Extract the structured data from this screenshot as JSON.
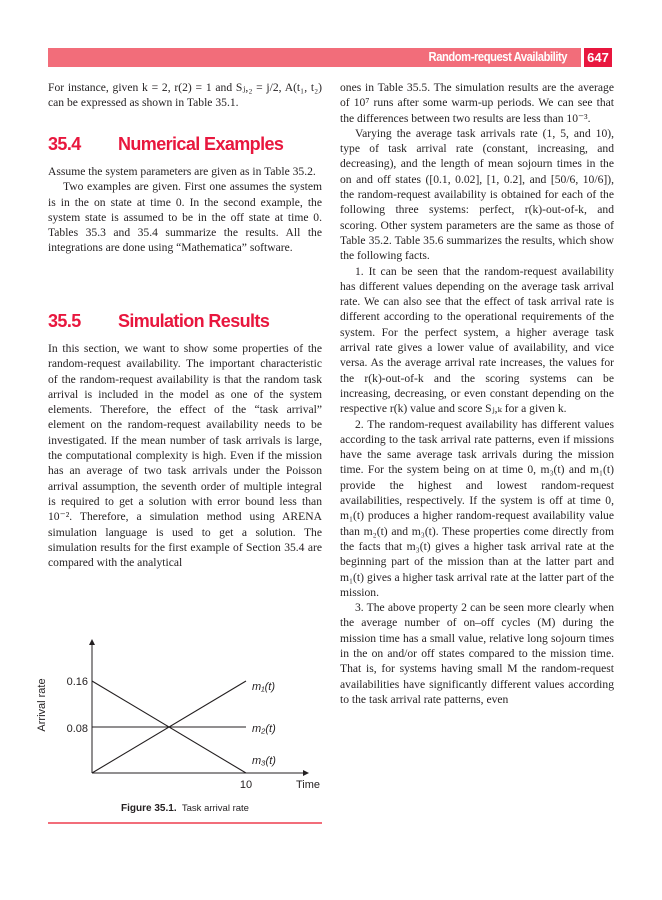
{
  "header": {
    "running_title": "Random-request Availability",
    "page_number": "647",
    "bar_color": "#f26d7a",
    "accent": "#e8173e"
  },
  "left": {
    "p1": "For instance, given k = 2, r(2) = 1 and Sⱼ,₂ = j/2, A(t₁, t₂) can be expressed as shown in Table 35.1.",
    "sec4": {
      "num": "35.4",
      "title": "Numerical Examples"
    },
    "p2": "Assume the system parameters are given as in Table 35.2.",
    "p3": "Two examples are given. First one assumes the system is in the on state at time 0. In the second example, the system state is assumed to be in the off state at time 0. Tables 35.3 and 35.4 summarize the results. All the integrations are done using “Mathematica” software.",
    "sec5": {
      "num": "35.5",
      "title": "Simulation Results"
    },
    "p4": "In this section, we want to show some properties of the random-request availability. The important characteristic of the random-request availability is that the random task arrival is included in the model as one of the system elements. Therefore, the effect of the “task arrival” element on the random-request availability needs to be investigated. If the mean number of task arrivals is large, the computational complexity is high. Even if the mission has an average of two task arrivals under the Poisson arrival assumption, the seventh order of multiple integral is required to get a solution with error bound less than 10⁻². Therefore, a simulation method using ARENA simulation language is used to get a solution. The simulation results for the first example of Section 35.4 are compared with the analytical"
  },
  "figure": {
    "label": "Figure 35.1.",
    "caption": "Task arrival rate"
  },
  "chart_data": {
    "type": "line",
    "xlabel": "Time",
    "ylabel": "Arrival rate",
    "x_ticks": [
      "10"
    ],
    "y_ticks": [
      "0.16",
      "0.08"
    ],
    "xlim": [
      0,
      12
    ],
    "ylim": [
      0,
      0.2
    ],
    "grid": false,
    "series": [
      {
        "name": "m₁(t)",
        "x": [
          0,
          10
        ],
        "y": [
          0,
          0.16
        ]
      },
      {
        "name": "m₂(t)",
        "x": [
          0,
          10
        ],
        "y": [
          0.08,
          0.08
        ]
      },
      {
        "name": "m₃(t)",
        "x": [
          0,
          10
        ],
        "y": [
          0.16,
          0
        ]
      }
    ]
  },
  "right": {
    "p1": "ones in Table 35.5. The simulation results are the average of 10⁷ runs after some warm-up periods. We can see that the differences between two results are less than 10⁻³.",
    "p2": "Varying the average task arrivals rate (1, 5, and 10), type of task arrival rate (constant, increasing, and decreasing), and the length of mean sojourn times in the on and off states ([0.1, 0.02], [1, 0.2], and [50/6, 10/6]), the random-request availability is obtained for each of the following three systems: perfect, r(k)-out-of-k, and scoring. Other system parameters are the same as those of Table 35.2. Table 35.6 summarizes the results, which show the following facts.",
    "p3": "1. It can be seen that the random-request availability has different values depending on the average task arrival rate. We can also see that the effect of task arrival rate is different according to the operational requirements of the system. For the perfect system, a higher average task arrival rate gives a lower value of availability, and vice versa. As the average arrival rate increases, the values for the r(k)-out-of-k and the scoring systems can be increasing, decreasing, or even constant depending on the respective r(k) value and score Sⱼ,ₖ for a given k.",
    "p4": "2. The random-request availability has different values according to the task arrival rate patterns, even if missions have the same average task arrivals during the mission time. For the system being on at time 0, m₃(t) and m₁(t) provide the highest and lowest random-request availabilities, respectively. If the system is off at time 0, m₁(t) produces a higher random-request availability value than m₂(t) and m₃(t). These properties come directly from the facts that m₃(t) gives a higher task arrival rate at the beginning part of the mission than at the latter part and m₁(t) gives a higher task arrival rate at the latter part of the mission.",
    "p5": "3. The above property 2 can be seen more clearly when the average number of on–off cycles (M) during the mission time has a small value, relative long sojourn times in the on and/or off states compared to the mission time. That is, for systems having small M the random-request availabilities have significantly different values according to the task arrival rate patterns, even"
  }
}
